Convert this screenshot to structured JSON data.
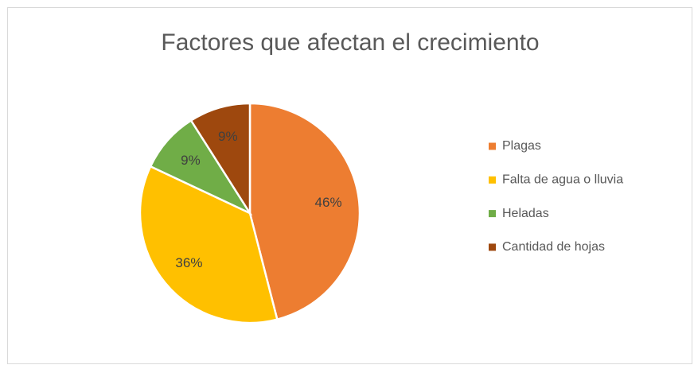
{
  "chart_data": {
    "type": "pie",
    "title": "Factores que afectan el crecimiento",
    "categories": [
      "Plagas",
      "Falta de agua o lluvia",
      "Heladas",
      "Cantidad de hojas"
    ],
    "values": [
      46,
      36,
      9,
      9
    ],
    "value_labels": [
      "46%",
      "36%",
      "9%",
      "9%"
    ],
    "colors": [
      "#ED7D31",
      "#FFC000",
      "#70AD47",
      "#9E480E"
    ],
    "legend": "right"
  }
}
